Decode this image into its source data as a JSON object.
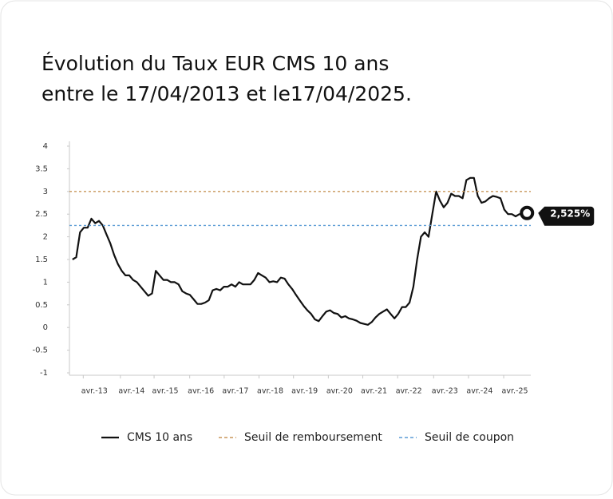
{
  "chart_data": {
    "type": "line",
    "title_lines": [
      "Évolution du Taux EUR CMS 10 ans",
      "entre le 17/04/2013 et le17/04/2025."
    ],
    "x": [
      2013.3,
      2013.4,
      2013.5,
      2013.6,
      2013.7,
      2013.8,
      2013.9,
      2014.0,
      2014.1,
      2014.2,
      2014.3,
      2014.4,
      2014.5,
      2014.6,
      2014.7,
      2014.8,
      2014.9,
      2015.0,
      2015.1,
      2015.2,
      2015.3,
      2015.4,
      2015.5,
      2015.6,
      2015.7,
      2015.8,
      2015.9,
      2016.0,
      2016.1,
      2016.2,
      2016.3,
      2016.4,
      2016.5,
      2016.6,
      2016.7,
      2016.8,
      2016.9,
      2017.0,
      2017.1,
      2017.2,
      2017.3,
      2017.4,
      2017.5,
      2017.6,
      2017.7,
      2017.8,
      2017.9,
      2018.0,
      2018.1,
      2018.2,
      2018.3,
      2018.4,
      2018.5,
      2018.6,
      2018.7,
      2018.8,
      2018.9,
      2019.0,
      2019.1,
      2019.2,
      2019.3,
      2019.4,
      2019.5,
      2019.6,
      2019.7,
      2019.8,
      2019.9,
      2020.0,
      2020.1,
      2020.2,
      2020.3,
      2020.4,
      2020.5,
      2020.6,
      2020.7,
      2020.8,
      2020.9,
      2021.0,
      2021.1,
      2021.2,
      2021.3,
      2021.4,
      2021.5,
      2021.6,
      2021.7,
      2021.8,
      2021.9,
      2022.0,
      2022.1,
      2022.2,
      2022.3,
      2022.4,
      2022.5,
      2022.6,
      2022.7,
      2022.8,
      2022.9,
      2023.0,
      2023.1,
      2023.2,
      2023.3,
      2023.4,
      2023.5,
      2023.6,
      2023.7,
      2023.8,
      2023.9,
      2024.0,
      2024.1,
      2024.2,
      2024.3,
      2024.4,
      2024.5,
      2024.6,
      2024.7,
      2024.8,
      2024.9,
      2025.0,
      2025.1,
      2025.2,
      2025.3
    ],
    "series": [
      {
        "name": "CMS 10 ans",
        "color": "#111111",
        "end_label": "2,525%",
        "values": [
          1.5,
          1.55,
          2.1,
          2.2,
          2.2,
          2.4,
          2.3,
          2.35,
          2.25,
          2.05,
          1.85,
          1.6,
          1.4,
          1.25,
          1.15,
          1.15,
          1.05,
          1.0,
          0.9,
          0.8,
          0.7,
          0.75,
          1.25,
          1.15,
          1.05,
          1.05,
          1.0,
          1.0,
          0.95,
          0.8,
          0.75,
          0.72,
          0.62,
          0.52,
          0.52,
          0.55,
          0.6,
          0.82,
          0.85,
          0.82,
          0.9,
          0.9,
          0.95,
          0.9,
          1.0,
          0.95,
          0.95,
          0.95,
          1.05,
          1.2,
          1.15,
          1.1,
          1.0,
          1.02,
          1.0,
          1.1,
          1.08,
          0.95,
          0.85,
          0.72,
          0.6,
          0.48,
          0.38,
          0.3,
          0.18,
          0.14,
          0.25,
          0.35,
          0.38,
          0.32,
          0.3,
          0.22,
          0.25,
          0.2,
          0.18,
          0.15,
          0.1,
          0.08,
          0.06,
          0.12,
          0.22,
          0.3,
          0.35,
          0.4,
          0.3,
          0.2,
          0.3,
          0.45,
          0.45,
          0.55,
          0.9,
          1.5,
          2.0,
          2.1,
          2.0,
          2.5,
          3.0,
          2.8,
          2.65,
          2.75,
          2.95,
          2.9,
          2.9,
          2.85,
          3.25,
          3.3,
          3.3,
          2.9,
          2.75,
          2.78,
          2.85,
          2.9,
          2.88,
          2.85,
          2.6,
          2.5,
          2.5,
          2.45,
          2.5,
          2.48,
          2.525
        ]
      },
      {
        "name": "Seuil de remboursement",
        "color": "#c8965a",
        "dashed": true,
        "value": 3
      },
      {
        "name": "Seuil de coupon",
        "color": "#5b9bd5",
        "dashed": true,
        "value": 2.25
      }
    ],
    "xlim": [
      2013.22,
      2025.4
    ],
    "xticks": [
      {
        "value": 2013.88,
        "label": "avr.-13"
      },
      {
        "value": 2014.86,
        "label": "avr.-14"
      },
      {
        "value": 2015.75,
        "label": "avr.-15"
      },
      {
        "value": 2016.69,
        "label": "avr.-16"
      },
      {
        "value": 2017.6,
        "label": "avr.-17"
      },
      {
        "value": 2018.52,
        "label": "avr.-18"
      },
      {
        "value": 2019.43,
        "label": "avr.-19"
      },
      {
        "value": 2020.35,
        "label": "avr.-20"
      },
      {
        "value": 2021.26,
        "label": "avr.-21"
      },
      {
        "value": 2022.18,
        "label": "avr.-22"
      },
      {
        "value": 2023.13,
        "label": "avr.-23"
      },
      {
        "value": 2024.05,
        "label": "avr.-24"
      },
      {
        "value": 2024.98,
        "label": "avr.-25"
      }
    ],
    "ylim": [
      -1,
      4
    ],
    "yticks": [
      -1,
      -0.5,
      0,
      0.5,
      1,
      1.5,
      2,
      2.5,
      3,
      3.5,
      4
    ],
    "grid": false,
    "legend": "bottom"
  }
}
